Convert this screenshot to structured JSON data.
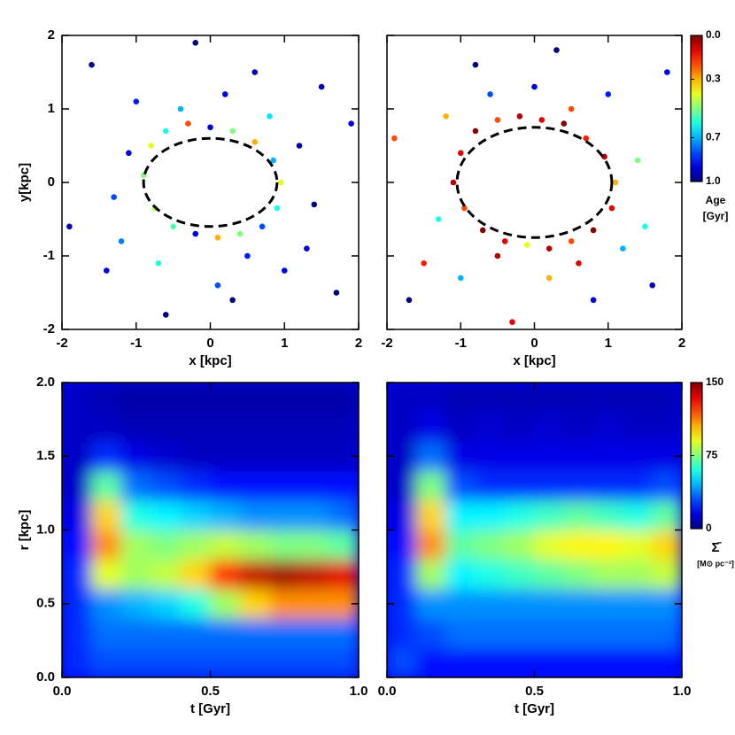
{
  "chart_data": [
    {
      "type": "scatter",
      "xlabel": "x [kpc]",
      "ylabel": "y[kpc]",
      "xlim": [
        -2,
        2
      ],
      "ylim": [
        -2,
        2
      ],
      "xticks": [
        -2,
        -1,
        0,
        1,
        2
      ],
      "yticks": [
        -2,
        -1,
        0,
        1,
        2
      ],
      "ellipse": {
        "rx": 0.9,
        "ry": 0.6
      },
      "x": [
        -0.9,
        -0.8,
        -0.6,
        -0.3,
        0,
        0.3,
        0.6,
        0.85,
        0.95,
        0.9,
        0.7,
        0.4,
        0.1,
        -0.2,
        -0.5,
        -0.75,
        -1.1,
        -1.3,
        1.2,
        1.4,
        -0.4,
        0.5,
        0.2,
        -0.7,
        0.8,
        -1.6,
        1.7,
        -1.9,
        1.9,
        0.3,
        -0.2,
        1.0,
        -1.0,
        0.6,
        -0.6,
        1.5,
        -1.4,
        0.1,
        -1.2,
        1.3
      ],
      "y": [
        0.1,
        0.5,
        0.7,
        0.8,
        0.75,
        0.7,
        0.55,
        0.3,
        0,
        -0.35,
        -0.6,
        -0.7,
        -0.75,
        -0.7,
        -0.6,
        -0.35,
        0.4,
        -0.2,
        0.5,
        -0.3,
        1.0,
        -1.0,
        1.2,
        -1.1,
        0.9,
        1.6,
        -1.5,
        -0.6,
        0.8,
        -1.6,
        1.9,
        -1.2,
        1.1,
        1.5,
        -1.8,
        1.3,
        -1.2,
        -1.4,
        -0.8,
        -0.9
      ],
      "age": [
        0.5,
        0.4,
        0.6,
        0.2,
        0.9,
        0.5,
        0.3,
        0.7,
        0.4,
        0.6,
        0.8,
        0.5,
        0.3,
        0.9,
        0.55,
        0.45,
        0.9,
        0.8,
        0.95,
        1.0,
        0.7,
        0.85,
        0.9,
        0.6,
        0.65,
        1.0,
        1.0,
        0.95,
        0.9,
        1.0,
        1.0,
        0.9,
        0.85,
        0.95,
        1.0,
        0.95,
        0.9,
        0.8,
        0.75,
        0.9
      ]
    },
    {
      "type": "scatter",
      "xlabel": "x [kpc]",
      "xlim": [
        -2,
        2
      ],
      "ylim": [
        -2,
        2
      ],
      "xticks": [
        -2,
        -1,
        0,
        1,
        2
      ],
      "yticks": [
        -2,
        -1,
        0,
        1,
        2
      ],
      "ellipse": {
        "rx": 1.05,
        "ry": 0.75
      },
      "x": [
        -1.1,
        -1.0,
        -0.8,
        -0.5,
        -0.2,
        0.1,
        0.4,
        0.7,
        0.95,
        1.1,
        1.05,
        0.8,
        0.5,
        0.2,
        -0.1,
        -0.4,
        -0.7,
        -0.95,
        -1.3,
        1.4,
        -0.6,
        0.6,
        0,
        -1.2,
        1.2,
        -1.7,
        1.8,
        -1.9,
        1.6,
        0.3,
        -0.3,
        1.0,
        -1.0,
        0.8,
        -0.8,
        1.5,
        -1.5,
        0.2,
        -0.5,
        0.5
      ],
      "y": [
        0,
        0.4,
        0.7,
        0.85,
        0.9,
        0.85,
        0.8,
        0.6,
        0.35,
        0,
        -0.35,
        -0.65,
        -0.8,
        -0.9,
        -0.85,
        -0.8,
        -0.65,
        -0.35,
        -0.5,
        0.3,
        1.2,
        -1.1,
        1.3,
        0.9,
        -0.9,
        -1.6,
        1.5,
        0.6,
        -1.4,
        1.8,
        -1.9,
        1.2,
        -1.3,
        -1.6,
        1.6,
        -0.6,
        -1.1,
        -1.3,
        -1.0,
        1.0
      ],
      "age": [
        0.05,
        0.1,
        0.0,
        0.2,
        0.05,
        0.1,
        0.0,
        0.15,
        0.05,
        0.3,
        0.1,
        0.0,
        0.2,
        0.05,
        0.4,
        0.1,
        0.0,
        0.2,
        0.6,
        0.5,
        0.8,
        0.1,
        0.9,
        0.3,
        0.7,
        1.0,
        0.9,
        0.2,
        0.95,
        1.0,
        0.1,
        0.85,
        0.7,
        0.9,
        1.0,
        0.6,
        0.15,
        0.3,
        0.05,
        0.2
      ],
      "colorbar": {
        "label": [
          "Age",
          "[Gyr]"
        ],
        "lim": [
          0,
          1
        ],
        "reversed": true,
        "ticks": [
          {
            "value": 0,
            "label": "0.0"
          },
          0.3,
          0.7,
          {
            "value": 1,
            "label": "1.0"
          }
        ]
      }
    },
    {
      "type": "heatmap",
      "xlabel": "t [Gyr]",
      "ylabel": "r [kpc]",
      "xlim": [
        0,
        1
      ],
      "ylim": [
        0,
        2
      ],
      "xticks": [
        {
          "value": 0,
          "label": "0.0"
        },
        0.5,
        {
          "value": 1,
          "label": "1.0"
        }
      ],
      "yticks": [
        {
          "value": 0,
          "label": "0.0"
        },
        0.5,
        {
          "value": 1,
          "label": "1.0"
        },
        1.5,
        {
          "value": 2,
          "label": "2.0"
        }
      ],
      "x": [
        0.05,
        0.15,
        0.25,
        0.35,
        0.45,
        0.55,
        0.65,
        0.75,
        0.85,
        0.95
      ],
      "y": [
        0.1,
        0.3,
        0.5,
        0.7,
        0.9,
        1.1,
        1.3,
        1.5,
        1.7,
        1.9
      ],
      "z": [
        [
          25,
          30,
          30,
          30,
          30,
          30,
          30,
          30,
          30,
          30
        ],
        [
          25,
          35,
          35,
          35,
          35,
          35,
          35,
          35,
          35,
          35
        ],
        [
          25,
          40,
          45,
          50,
          60,
          80,
          100,
          110,
          110,
          110
        ],
        [
          25,
          90,
          80,
          85,
          100,
          125,
          140,
          145,
          140,
          135
        ],
        [
          20,
          110,
          80,
          75,
          80,
          85,
          80,
          75,
          75,
          70
        ],
        [
          15,
          100,
          60,
          55,
          50,
          45,
          40,
          40,
          40,
          35
        ],
        [
          10,
          70,
          35,
          30,
          25,
          20,
          20,
          20,
          20,
          20
        ],
        [
          10,
          25,
          15,
          12,
          10,
          10,
          10,
          10,
          10,
          10
        ],
        [
          10,
          10,
          8,
          8,
          8,
          8,
          8,
          8,
          8,
          8
        ],
        [
          10,
          8,
          6,
          6,
          6,
          6,
          6,
          6,
          6,
          6
        ]
      ]
    },
    {
      "type": "heatmap",
      "xlabel": "t [Gyr]",
      "xlim": [
        0,
        1
      ],
      "ylim": [
        0,
        2
      ],
      "xticks": [
        {
          "value": 0,
          "label": "0.0"
        },
        0.5,
        {
          "value": 1,
          "label": "1.0"
        }
      ],
      "yticks": [
        {
          "value": 0,
          "label": "0.0"
        },
        0.5,
        {
          "value": 1,
          "label": "1.0"
        },
        1.5,
        {
          "value": 2,
          "label": "2.0"
        }
      ],
      "x": [
        0.05,
        0.15,
        0.25,
        0.35,
        0.45,
        0.55,
        0.65,
        0.75,
        0.85,
        0.95
      ],
      "y": [
        0.1,
        0.3,
        0.5,
        0.7,
        0.9,
        1.1,
        1.3,
        1.5,
        1.7,
        1.9
      ],
      "z": [
        [
          30,
          20,
          20,
          20,
          20,
          20,
          20,
          20,
          20,
          20
        ],
        [
          25,
          30,
          35,
          35,
          35,
          35,
          35,
          35,
          35,
          35
        ],
        [
          25,
          40,
          40,
          40,
          40,
          40,
          40,
          40,
          40,
          40
        ],
        [
          25,
          80,
          55,
          60,
          65,
          70,
          75,
          80,
          80,
          85
        ],
        [
          20,
          110,
          70,
          75,
          80,
          90,
          95,
          95,
          90,
          100
        ],
        [
          15,
          100,
          55,
          55,
          60,
          65,
          70,
          65,
          60,
          70
        ],
        [
          10,
          75,
          30,
          25,
          25,
          25,
          25,
          25,
          25,
          30
        ],
        [
          10,
          35,
          15,
          15,
          15,
          15,
          15,
          15,
          15,
          15
        ],
        [
          10,
          15,
          10,
          12,
          10,
          12,
          10,
          12,
          10,
          10
        ],
        [
          10,
          10,
          8,
          8,
          8,
          8,
          8,
          8,
          8,
          8
        ]
      ],
      "colorbar": {
        "label": [
          "Σ̄",
          "[M⊙ pc⁻²]"
        ],
        "lim": [
          0,
          150
        ],
        "ticks": [
          0,
          75,
          150
        ]
      }
    }
  ]
}
